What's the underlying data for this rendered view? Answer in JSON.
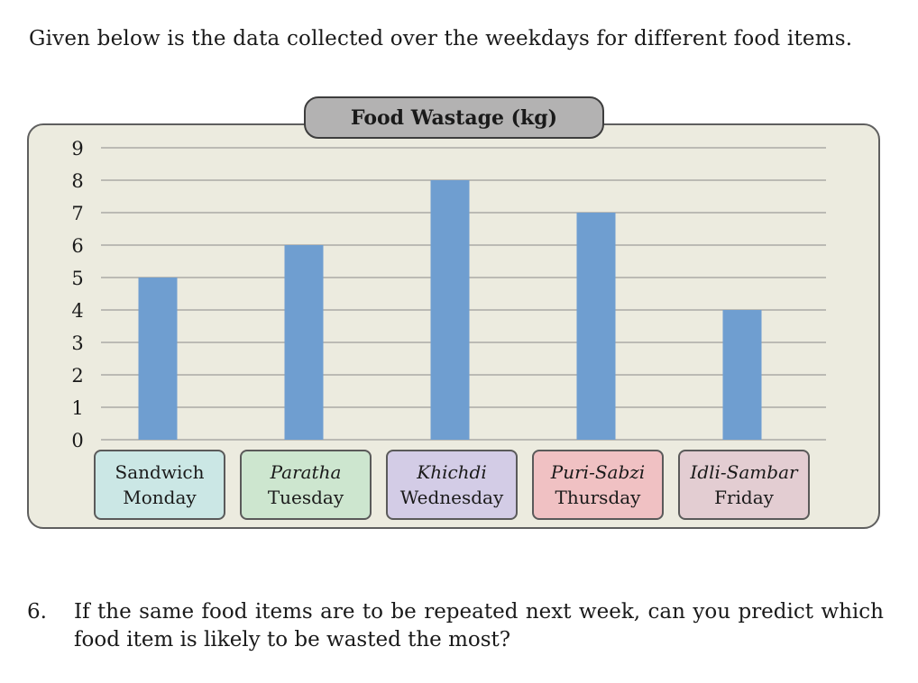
{
  "intro_text": "Given below is the data collected over the weekdays for different food items.",
  "question": {
    "number": "6.",
    "text": "If the same food items are to be repeated next week, can you predict which food item is likely to be wasted the most?"
  },
  "colors": {
    "bar": "#6f9ed0",
    "panel": "#ecebdf",
    "gridline": "#8a8a8a",
    "box_colors": [
      "#cbe7e5",
      "#cde6cf",
      "#d3cce6",
      "#f0c1c3",
      "#e3cdd2"
    ]
  },
  "chart_data": {
    "type": "bar",
    "title": "Food Wastage (kg)",
    "xlabel": "",
    "ylabel": "",
    "ylim": [
      0,
      9
    ],
    "yticks": [
      "0",
      "1",
      "2",
      "3",
      "4",
      "5",
      "6",
      "7",
      "8",
      "9"
    ],
    "grid": true,
    "categories": [
      {
        "food": "Sandwich",
        "day": "Monday"
      },
      {
        "food": "Paratha",
        "day": "Tuesday"
      },
      {
        "food": "Khichdi",
        "day": "Wednesday"
      },
      {
        "food": "Puri-Sabzi",
        "day": "Thursday"
      },
      {
        "food": "Idli-Sambar",
        "day": "Friday"
      }
    ],
    "values": [
      5,
      6,
      8,
      7,
      4
    ]
  }
}
